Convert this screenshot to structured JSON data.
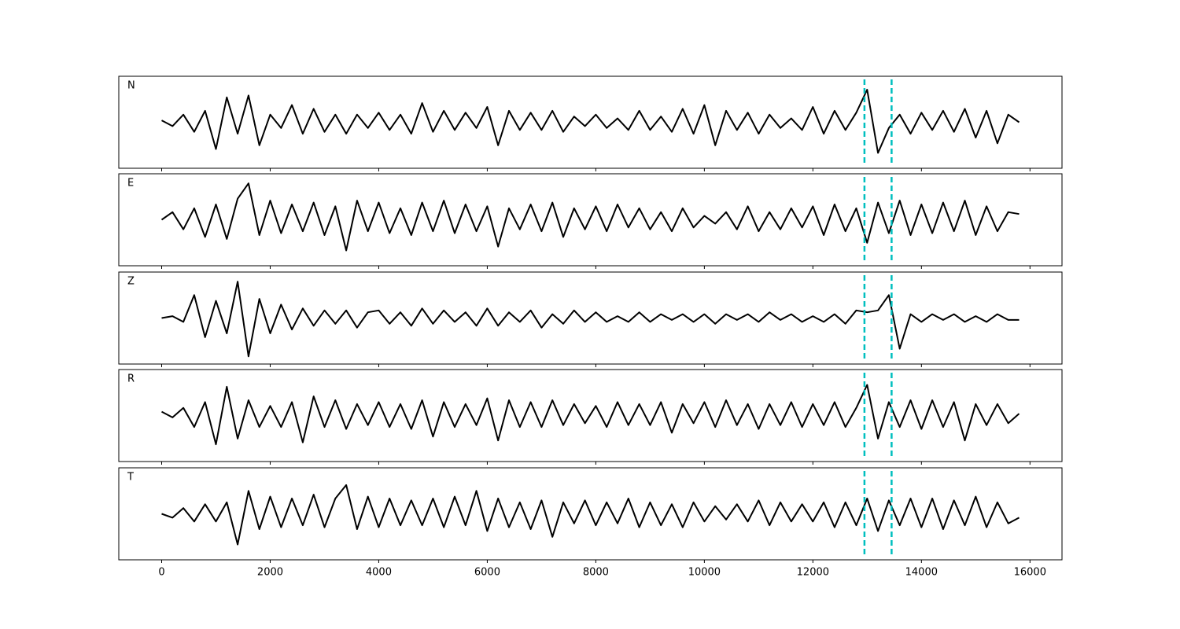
{
  "chart_data": [
    {
      "type": "line",
      "label": "N",
      "color": "#000000",
      "xlim": [
        -790,
        16590
      ],
      "ylim": [
        -1.2,
        1.2
      ],
      "xticks": [
        0,
        2000,
        4000,
        6000,
        8000,
        10000,
        12000,
        14000,
        16000
      ],
      "vlines": [
        12950,
        13450
      ],
      "vline_color": "#00bfbf",
      "x": [
        0,
        200,
        400,
        600,
        800,
        1000,
        1200,
        1400,
        1600,
        1800,
        2000,
        2200,
        2400,
        2600,
        2800,
        3000,
        3200,
        3400,
        3600,
        3800,
        4000,
        4200,
        4400,
        4600,
        4800,
        5000,
        5200,
        5400,
        5600,
        5800,
        6000,
        6200,
        6400,
        6600,
        6800,
        7000,
        7200,
        7400,
        7600,
        7800,
        8000,
        8200,
        8400,
        8600,
        8800,
        9000,
        9200,
        9400,
        9600,
        9800,
        10000,
        10200,
        10400,
        10600,
        10800,
        11000,
        11200,
        11400,
        11600,
        11800,
        12000,
        12200,
        12400,
        12600,
        12800,
        13000,
        13200,
        13400,
        13600,
        13800,
        14000,
        14200,
        14400,
        14600,
        14800,
        15000,
        15200,
        15400,
        15600,
        15800
      ],
      "values": [
        0.05,
        -0.1,
        0.2,
        -0.25,
        0.3,
        -0.7,
        0.65,
        -0.3,
        0.7,
        -0.6,
        0.2,
        -0.15,
        0.45,
        -0.3,
        0.35,
        -0.25,
        0.2,
        -0.3,
        0.2,
        -0.15,
        0.25,
        -0.2,
        0.2,
        -0.3,
        0.5,
        -0.25,
        0.3,
        -0.2,
        0.25,
        -0.15,
        0.4,
        -0.6,
        0.3,
        -0.2,
        0.25,
        -0.2,
        0.3,
        -0.25,
        0.15,
        -0.1,
        0.2,
        -0.15,
        0.1,
        -0.2,
        0.3,
        -0.2,
        0.15,
        -0.25,
        0.35,
        -0.3,
        0.45,
        -0.6,
        0.3,
        -0.2,
        0.25,
        -0.3,
        0.2,
        -0.15,
        0.1,
        -0.2,
        0.4,
        -0.3,
        0.3,
        -0.2,
        0.25,
        0.85,
        -0.8,
        -0.15,
        0.2,
        -0.3,
        0.25,
        -0.2,
        0.3,
        -0.25,
        0.35,
        -0.4,
        0.3,
        -0.55,
        0.2,
        0.0
      ]
    },
    {
      "type": "line",
      "label": "E",
      "color": "#000000",
      "xlim": [
        -790,
        16590
      ],
      "ylim": [
        -1.2,
        1.2
      ],
      "xticks": [
        0,
        2000,
        4000,
        6000,
        8000,
        10000,
        12000,
        14000,
        16000
      ],
      "vlines": [
        12950,
        13450
      ],
      "vline_color": "#00bfbf",
      "x": [
        0,
        200,
        400,
        600,
        800,
        1000,
        1200,
        1400,
        1600,
        1800,
        2000,
        2200,
        2400,
        2600,
        2800,
        3000,
        3200,
        3400,
        3600,
        3800,
        4000,
        4200,
        4400,
        4600,
        4800,
        5000,
        5200,
        5400,
        5600,
        5800,
        6000,
        6200,
        6400,
        6600,
        6800,
        7000,
        7200,
        7400,
        7600,
        7800,
        8000,
        8200,
        8400,
        8600,
        8800,
        9000,
        9200,
        9400,
        9600,
        9800,
        10000,
        10200,
        10400,
        10600,
        10800,
        11000,
        11200,
        11400,
        11600,
        11800,
        12000,
        12200,
        12400,
        12600,
        12800,
        13000,
        13200,
        13400,
        13600,
        13800,
        14000,
        14200,
        14400,
        14600,
        14800,
        15000,
        15200,
        15400,
        15600,
        15800
      ],
      "values": [
        0.0,
        0.2,
        -0.25,
        0.3,
        -0.45,
        0.4,
        -0.5,
        0.55,
        0.95,
        -0.4,
        0.5,
        -0.35,
        0.4,
        -0.3,
        0.45,
        -0.4,
        0.35,
        -0.8,
        0.5,
        -0.3,
        0.45,
        -0.35,
        0.3,
        -0.4,
        0.45,
        -0.3,
        0.5,
        -0.35,
        0.4,
        -0.3,
        0.35,
        -0.7,
        0.3,
        -0.25,
        0.4,
        -0.3,
        0.45,
        -0.45,
        0.3,
        -0.25,
        0.35,
        -0.3,
        0.4,
        -0.2,
        0.3,
        -0.25,
        0.2,
        -0.3,
        0.3,
        -0.2,
        0.1,
        -0.1,
        0.2,
        -0.25,
        0.35,
        -0.3,
        0.2,
        -0.25,
        0.3,
        -0.2,
        0.35,
        -0.4,
        0.4,
        -0.3,
        0.3,
        -0.6,
        0.45,
        -0.35,
        0.5,
        -0.4,
        0.4,
        -0.35,
        0.45,
        -0.3,
        0.5,
        -0.4,
        0.35,
        -0.3,
        0.2,
        0.15
      ]
    },
    {
      "type": "line",
      "label": "Z",
      "color": "#000000",
      "xlim": [
        -790,
        16590
      ],
      "ylim": [
        -1.2,
        1.2
      ],
      "xticks": [
        0,
        2000,
        4000,
        6000,
        8000,
        10000,
        12000,
        14000,
        16000
      ],
      "vlines": [
        12950,
        13450
      ],
      "vline_color": "#00bfbf",
      "x": [
        0,
        200,
        400,
        600,
        800,
        1000,
        1200,
        1400,
        1600,
        1800,
        2000,
        2200,
        2400,
        2600,
        2800,
        3000,
        3200,
        3400,
        3600,
        3800,
        4000,
        4200,
        4400,
        4600,
        4800,
        5000,
        5200,
        5400,
        5600,
        5800,
        6000,
        6200,
        6400,
        6600,
        6800,
        7000,
        7200,
        7400,
        7600,
        7800,
        8000,
        8200,
        8400,
        8600,
        8800,
        9000,
        9200,
        9400,
        9600,
        9800,
        10000,
        10200,
        10400,
        10600,
        10800,
        11000,
        11200,
        11400,
        11600,
        11800,
        12000,
        12200,
        12400,
        12600,
        12800,
        13000,
        13200,
        13400,
        13600,
        13800,
        14000,
        14200,
        14400,
        14600,
        14800,
        15000,
        15200,
        15400,
        15600,
        15800
      ],
      "values": [
        0.0,
        0.05,
        -0.1,
        0.6,
        -0.5,
        0.45,
        -0.4,
        0.95,
        -1.0,
        0.5,
        -0.4,
        0.35,
        -0.3,
        0.25,
        -0.2,
        0.2,
        -0.15,
        0.2,
        -0.25,
        0.15,
        0.2,
        -0.15,
        0.15,
        -0.2,
        0.25,
        -0.15,
        0.2,
        -0.1,
        0.15,
        -0.2,
        0.25,
        -0.2,
        0.15,
        -0.1,
        0.2,
        -0.25,
        0.1,
        -0.15,
        0.2,
        -0.1,
        0.15,
        -0.1,
        0.05,
        -0.1,
        0.15,
        -0.1,
        0.1,
        -0.05,
        0.1,
        -0.1,
        0.1,
        -0.15,
        0.1,
        -0.05,
        0.1,
        -0.1,
        0.15,
        -0.05,
        0.1,
        -0.1,
        0.05,
        -0.1,
        0.1,
        -0.15,
        0.2,
        0.15,
        0.2,
        0.6,
        -0.8,
        0.1,
        -0.1,
        0.1,
        -0.05,
        0.1,
        -0.1,
        0.05,
        -0.1,
        0.1,
        -0.05,
        -0.05
      ]
    },
    {
      "type": "line",
      "label": "R",
      "color": "#000000",
      "xlim": [
        -790,
        16590
      ],
      "ylim": [
        -1.2,
        1.2
      ],
      "xticks": [
        0,
        2000,
        4000,
        6000,
        8000,
        10000,
        12000,
        14000,
        16000
      ],
      "vlines": [
        12950,
        13450
      ],
      "vline_color": "#00bfbf",
      "x": [
        0,
        200,
        400,
        600,
        800,
        1000,
        1200,
        1400,
        1600,
        1800,
        2000,
        2200,
        2400,
        2600,
        2800,
        3000,
        3200,
        3400,
        3600,
        3800,
        4000,
        4200,
        4400,
        4600,
        4800,
        5000,
        5200,
        5400,
        5600,
        5800,
        6000,
        6200,
        6400,
        6600,
        6800,
        7000,
        7200,
        7400,
        7600,
        7800,
        8000,
        8200,
        8400,
        8600,
        8800,
        9000,
        9200,
        9400,
        9600,
        9800,
        10000,
        10200,
        10400,
        10600,
        10800,
        11000,
        11200,
        11400,
        11600,
        11800,
        12000,
        12200,
        12400,
        12600,
        12800,
        13000,
        13200,
        13400,
        13600,
        13800,
        14000,
        14200,
        14400,
        14600,
        14800,
        15000,
        15200,
        15400,
        15600,
        15800
      ],
      "values": [
        0.1,
        -0.05,
        0.2,
        -0.3,
        0.35,
        -0.75,
        0.75,
        -0.6,
        0.4,
        -0.3,
        0.25,
        -0.3,
        0.35,
        -0.7,
        0.5,
        -0.3,
        0.4,
        -0.35,
        0.3,
        -0.25,
        0.35,
        -0.3,
        0.3,
        -0.35,
        0.4,
        -0.55,
        0.35,
        -0.3,
        0.3,
        -0.25,
        0.45,
        -0.65,
        0.4,
        -0.3,
        0.35,
        -0.3,
        0.4,
        -0.25,
        0.3,
        -0.2,
        0.25,
        -0.3,
        0.35,
        -0.25,
        0.3,
        -0.25,
        0.35,
        -0.45,
        0.3,
        -0.2,
        0.35,
        -0.3,
        0.4,
        -0.25,
        0.3,
        -0.35,
        0.3,
        -0.25,
        0.35,
        -0.3,
        0.3,
        -0.25,
        0.35,
        -0.3,
        0.2,
        0.8,
        -0.6,
        0.35,
        -0.3,
        0.4,
        -0.35,
        0.4,
        -0.3,
        0.35,
        -0.65,
        0.3,
        -0.25,
        0.3,
        -0.2,
        0.05
      ]
    },
    {
      "type": "line",
      "label": "T",
      "color": "#000000",
      "xlim": [
        -790,
        16590
      ],
      "ylim": [
        -1.2,
        1.2
      ],
      "xticks": [
        0,
        2000,
        4000,
        6000,
        8000,
        10000,
        12000,
        14000,
        16000
      ],
      "vlines": [
        12950,
        13450
      ],
      "vline_color": "#00bfbf",
      "x": [
        0,
        200,
        400,
        600,
        800,
        1000,
        1200,
        1400,
        1600,
        1800,
        2000,
        2200,
        2400,
        2600,
        2800,
        3000,
        3200,
        3400,
        3600,
        3800,
        4000,
        4200,
        4400,
        4600,
        4800,
        5000,
        5200,
        5400,
        5600,
        5800,
        6000,
        6200,
        6400,
        6600,
        6800,
        7000,
        7200,
        7400,
        7600,
        7800,
        8000,
        8200,
        8400,
        8600,
        8800,
        9000,
        9200,
        9400,
        9600,
        9800,
        10000,
        10200,
        10400,
        10600,
        10800,
        11000,
        11200,
        11400,
        11600,
        11800,
        12000,
        12200,
        12400,
        12600,
        12800,
        13000,
        13200,
        13400,
        13600,
        13800,
        14000,
        14200,
        14400,
        14600,
        14800,
        15000,
        15200,
        15400,
        15600,
        15800
      ],
      "values": [
        0.0,
        -0.1,
        0.15,
        -0.2,
        0.25,
        -0.2,
        0.3,
        -0.8,
        0.6,
        -0.4,
        0.45,
        -0.35,
        0.4,
        -0.3,
        0.5,
        -0.35,
        0.4,
        0.75,
        -0.4,
        0.45,
        -0.35,
        0.4,
        -0.3,
        0.35,
        -0.3,
        0.4,
        -0.35,
        0.45,
        -0.3,
        0.6,
        -0.45,
        0.4,
        -0.35,
        0.3,
        -0.4,
        0.35,
        -0.6,
        0.3,
        -0.25,
        0.35,
        -0.3,
        0.3,
        -0.25,
        0.4,
        -0.35,
        0.3,
        -0.3,
        0.25,
        -0.35,
        0.3,
        -0.2,
        0.2,
        -0.15,
        0.25,
        -0.2,
        0.35,
        -0.3,
        0.3,
        -0.2,
        0.25,
        -0.2,
        0.3,
        -0.35,
        0.3,
        -0.3,
        0.4,
        -0.45,
        0.35,
        -0.3,
        0.4,
        -0.35,
        0.4,
        -0.4,
        0.35,
        -0.3,
        0.45,
        -0.35,
        0.3,
        -0.25,
        -0.1
      ]
    }
  ]
}
